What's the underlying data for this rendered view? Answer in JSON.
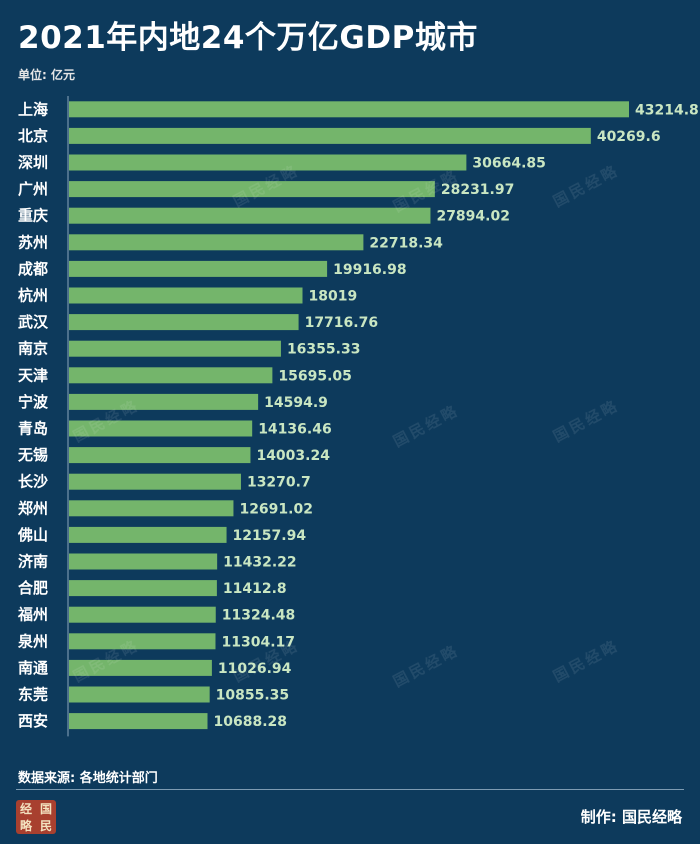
{
  "title": "2021年内地24个万亿GDP城市",
  "unit": "单位: 亿元",
  "source": "数据来源: 各地统计部门",
  "credit": "制作:  国民经略",
  "logo_chars": [
    "经",
    "国",
    "略",
    "民"
  ],
  "watermark": "国民经略",
  "chart_data": {
    "type": "bar",
    "orientation": "horizontal",
    "title": "2021年内地24个万亿GDP城市",
    "unit": "亿元",
    "categories": [
      "上海",
      "北京",
      "深圳",
      "广州",
      "重庆",
      "苏州",
      "成都",
      "杭州",
      "武汉",
      "南京",
      "天津",
      "宁波",
      "青岛",
      "无锡",
      "长沙",
      "郑州",
      "佛山",
      "济南",
      "合肥",
      "福州",
      "泉州",
      "南通",
      "东莞",
      "西安"
    ],
    "values": [
      43214.8,
      40269.6,
      30664.85,
      28231.97,
      27894.02,
      22718.34,
      19916.98,
      18019,
      17716.76,
      16355.33,
      15695.05,
      14594.9,
      14136.46,
      14003.24,
      13270.7,
      12691.02,
      12157.94,
      11432.22,
      11412.8,
      11324.48,
      11304.17,
      11026.94,
      10855.35,
      10688.28
    ],
    "value_labels": [
      "43214.8",
      "40269.6",
      "30664.85",
      "28231.97",
      "27894.02",
      "22718.34",
      "19916.98",
      "18019",
      "17716.76",
      "16355.33",
      "15695.05",
      "14594.9",
      "14136.46",
      "14003.24",
      "13270.7",
      "12691.02",
      "12157.94",
      "11432.22",
      "11412.8",
      "11324.48",
      "11304.17",
      "11026.94",
      "10855.35",
      "10688.28"
    ],
    "colors": {
      "background": "#0d3a5c",
      "bar": "#74b56b",
      "value_label": "#c9e6c2"
    },
    "grid": false,
    "legend": "none"
  }
}
